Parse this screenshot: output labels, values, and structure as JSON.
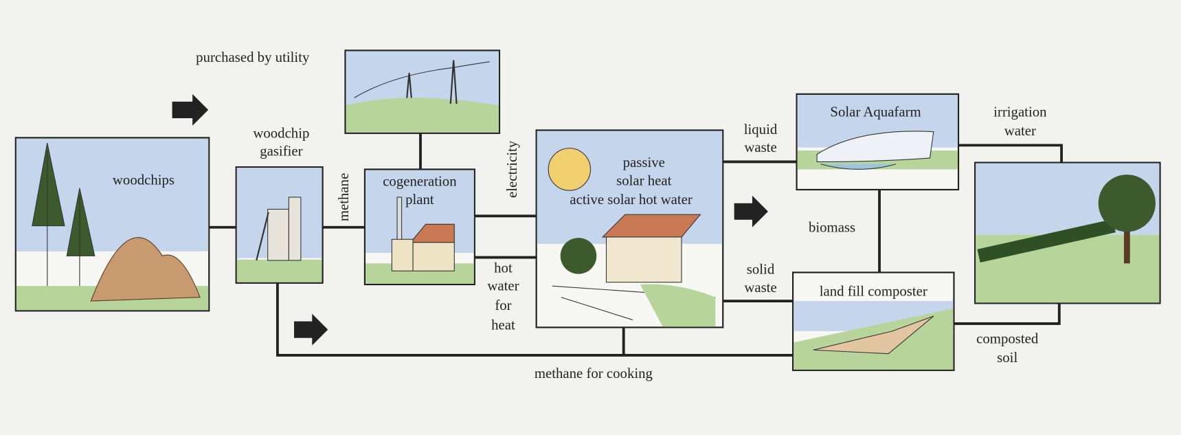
{
  "nodes": [
    {
      "label": [
        "woodchips"
      ]
    },
    {
      "label": [
        "woodchip",
        "gasifier"
      ]
    },
    {
      "label": [
        "cogeneration",
        "plant"
      ]
    },
    {
      "label": [
        "passive",
        "solar heat",
        "active solar hot water"
      ]
    },
    {
      "label": [
        "Solar Aquafarm"
      ]
    },
    {
      "label": [
        "land fill composter"
      ]
    }
  ],
  "edges": [
    {
      "label": [
        "purchased by utility"
      ]
    },
    {
      "label": [
        "methane"
      ]
    },
    {
      "label": [
        "electricity"
      ]
    },
    {
      "label": [
        "hot",
        "water",
        "for",
        "heat"
      ]
    },
    {
      "label": [
        "liquid",
        "waste"
      ]
    },
    {
      "label": [
        "biomass"
      ]
    },
    {
      "label": [
        "solid",
        "waste"
      ]
    },
    {
      "label": [
        "irrigation",
        "water"
      ]
    },
    {
      "label": [
        "composted",
        "soil"
      ]
    },
    {
      "label": [
        "methane for cooking"
      ]
    }
  ]
}
